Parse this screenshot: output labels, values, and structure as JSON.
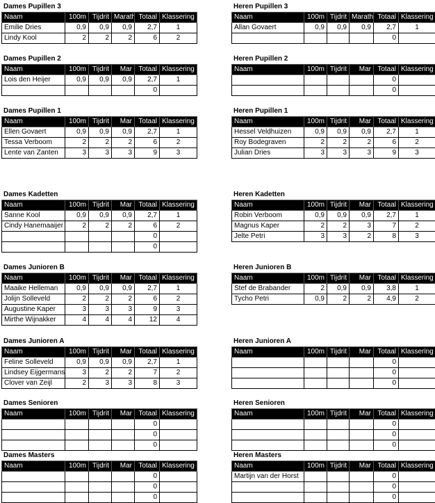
{
  "left": [
    {
      "title": "Dames Pupillen 3",
      "header": [
        "Naam",
        "100m",
        "Tijdrit",
        "Marath",
        "Totaal",
        "Klassering"
      ],
      "rows": [
        [
          "Emilie Dries",
          "0,9",
          "0,9",
          "0,9",
          "2,7",
          "1"
        ],
        [
          "Lindy Kool",
          "2",
          "2",
          "2",
          "6",
          "2"
        ]
      ]
    },
    {
      "title": "Dames Pupillen 2",
      "header": [
        "Naam",
        "100m",
        "Tijdrit",
        "Mar",
        "Totaal",
        "Klassering"
      ],
      "rows": [
        [
          "Lois den Heijer",
          "0,9",
          "0,9",
          "0,9",
          "2,7",
          "1"
        ],
        [
          null,
          null,
          null,
          null,
          "0",
          null
        ]
      ]
    },
    {
      "title": "Dames Pupillen 1",
      "header": [
        "Naam",
        "100m",
        "Tijdrit",
        "Mar",
        "Totaal",
        "Klassering"
      ],
      "rows": [
        [
          "Ellen Govaert",
          "0,9",
          "0,9",
          "0,9",
          "2,7",
          "1"
        ],
        [
          "Tessa  Verboom",
          "2",
          "2",
          "2",
          "6",
          "2"
        ],
        [
          "Lente van Zanten",
          "3",
          "3",
          "3",
          "9",
          "3"
        ]
      ]
    },
    {
      "title": "Dames Kadetten",
      "header": [
        "Naam",
        "100m",
        "Tijdrit",
        "Mar",
        "Totaal",
        "Klassering"
      ],
      "rows": [
        [
          "Sanne Kool",
          "0,9",
          "0,9",
          "0,9",
          "2,7",
          "1"
        ],
        [
          "Cindy Hanemaaijer",
          "2",
          "2",
          "2",
          "6",
          "2"
        ],
        [
          null,
          null,
          null,
          null,
          "0",
          null
        ],
        [
          null,
          null,
          null,
          null,
          "0",
          null
        ]
      ]
    },
    {
      "title": "Dames Junioren B",
      "header": [
        "Naam",
        "100m",
        "Tijdrit",
        "Mar",
        "Totaal",
        "Klassering"
      ],
      "rows": [
        [
          "Maaike Helleman",
          "0,9",
          "0,9",
          "0,9",
          "2,7",
          "1"
        ],
        [
          "Jolijn Solleveld",
          "2",
          "2",
          "2",
          "6",
          "2"
        ],
        [
          "Augustine Kaper",
          "3",
          "3",
          "3",
          "9",
          "3"
        ],
        [
          "Mirthe Wijnakker",
          "4",
          "4",
          "4",
          "12",
          "4"
        ]
      ]
    },
    {
      "title": "Dames Junioren A",
      "header": [
        "Naam",
        "100m",
        "Tijdrit",
        "Mar",
        "Totaal",
        "Klassering"
      ],
      "rows": [
        [
          "Feline Solleveld",
          "0,9",
          "0,9",
          "0,9",
          "2,7",
          "1"
        ],
        [
          "Lindsey Eijgermans",
          "3",
          "2",
          "2",
          "7",
          "2"
        ],
        [
          "Clover van Zeijl",
          "2",
          "3",
          "3",
          "8",
          "3"
        ]
      ]
    },
    {
      "title": "Dames Senioren",
      "header": [
        "Naam",
        "100m",
        "Tijdrit",
        "Mar",
        "Totaal",
        "Klassering"
      ],
      "rows": [
        [
          null,
          null,
          null,
          null,
          "0",
          null
        ],
        [
          null,
          null,
          null,
          null,
          "0",
          null
        ],
        [
          null,
          null,
          null,
          null,
          "0",
          null
        ]
      ]
    },
    {
      "title": "Dames Masters",
      "header": [
        "Naam",
        "100m",
        "Tijdrit",
        "Mar",
        "Totaal",
        "Klassering"
      ],
      "rows": [
        [
          null,
          null,
          null,
          null,
          "0",
          null
        ],
        [
          null,
          null,
          null,
          null,
          "0",
          null
        ],
        [
          null,
          null,
          null,
          null,
          "0",
          null
        ]
      ]
    }
  ],
  "right": [
    {
      "title": "Heren Pupillen 3",
      "header": [
        "Naam",
        "100m",
        "Tijdrit",
        "Marath",
        "Totaal",
        "Klassering"
      ],
      "rows": [
        [
          "Allan Govaert",
          "0,9",
          "0,9",
          "0,9",
          "2,7",
          "1"
        ],
        [
          null,
          null,
          null,
          null,
          "0",
          null
        ]
      ]
    },
    {
      "title": "Heren Pupillen 2",
      "header": [
        "Naam",
        "100m",
        "Tijdrit",
        "Mar",
        "Totaal",
        "Klassering"
      ],
      "rows": [
        [
          null,
          null,
          null,
          null,
          "0",
          null
        ],
        [
          null,
          null,
          null,
          null,
          "0",
          null
        ]
      ]
    },
    {
      "title": "Heren Pupillen 1",
      "header": [
        "Naam",
        "100m",
        "Tijdrit",
        "Mar",
        "Totaal",
        "Klassering"
      ],
      "rows": [
        [
          "Hessel Veldhuizen",
          "0,9",
          "0,9",
          "0,9",
          "2,7",
          "1"
        ],
        [
          "Roy Bodegraven",
          "2",
          "2",
          "2",
          "6",
          "2"
        ],
        [
          "Julian Dries",
          "3",
          "3",
          "3",
          "9",
          "3"
        ]
      ]
    },
    {
      "title": "Heren Kadetten",
      "header": [
        "Naam",
        "100m",
        "Tijdrit",
        "Mar",
        "Totaal",
        "Klassering"
      ],
      "rows": [
        [
          "Robin Verboom",
          "0,9",
          "0,9",
          "0,9",
          "2,7",
          "1"
        ],
        [
          "Magnus Kaper",
          "2",
          "2",
          "3",
          "7",
          "2"
        ],
        [
          "Jelte Petri",
          "3",
          "3",
          "2",
          "8",
          "3"
        ]
      ]
    },
    {
      "title": "Heren Junioren B",
      "header": [
        "Naam",
        "100m",
        "Tijdrit",
        "Mar",
        "Totaal",
        "Klassering"
      ],
      "rows": [
        [
          "Stef de Brabander",
          "2",
          "0,9",
          "0,9",
          "3,8",
          "1"
        ],
        [
          "Tycho Petri",
          "0,9",
          "2",
          "2",
          "4,9",
          "2"
        ]
      ]
    },
    {
      "title": "Heren Junioren A",
      "header": [
        "Naam",
        "100m",
        "Tijdrit",
        "Mar",
        "Totaal",
        "Klassering"
      ],
      "rows": [
        [
          null,
          null,
          null,
          null,
          "0",
          null
        ],
        [
          null,
          null,
          null,
          null,
          "0",
          null
        ],
        [
          null,
          null,
          null,
          null,
          "0",
          null
        ]
      ]
    },
    {
      "title": "Heren Senioren",
      "header": [
        "Naam",
        "100m",
        "Tijdrit",
        "Mar",
        "Totaal",
        "Klassering"
      ],
      "rows": [
        [
          null,
          null,
          null,
          null,
          "0",
          null
        ],
        [
          null,
          null,
          null,
          null,
          "0",
          null
        ],
        [
          null,
          null,
          null,
          null,
          "0",
          null
        ]
      ]
    },
    {
      "title": "Heren Masters",
      "header": [
        "Naam",
        "100m",
        "Tijdrit",
        "Mar",
        "Totaal",
        "Klassering"
      ],
      "rows": [
        [
          "Martijn van der Horst",
          null,
          null,
          null,
          "0",
          null
        ],
        [
          null,
          null,
          null,
          null,
          "0",
          null
        ],
        [
          null,
          null,
          null,
          null,
          "0",
          null
        ]
      ]
    }
  ]
}
